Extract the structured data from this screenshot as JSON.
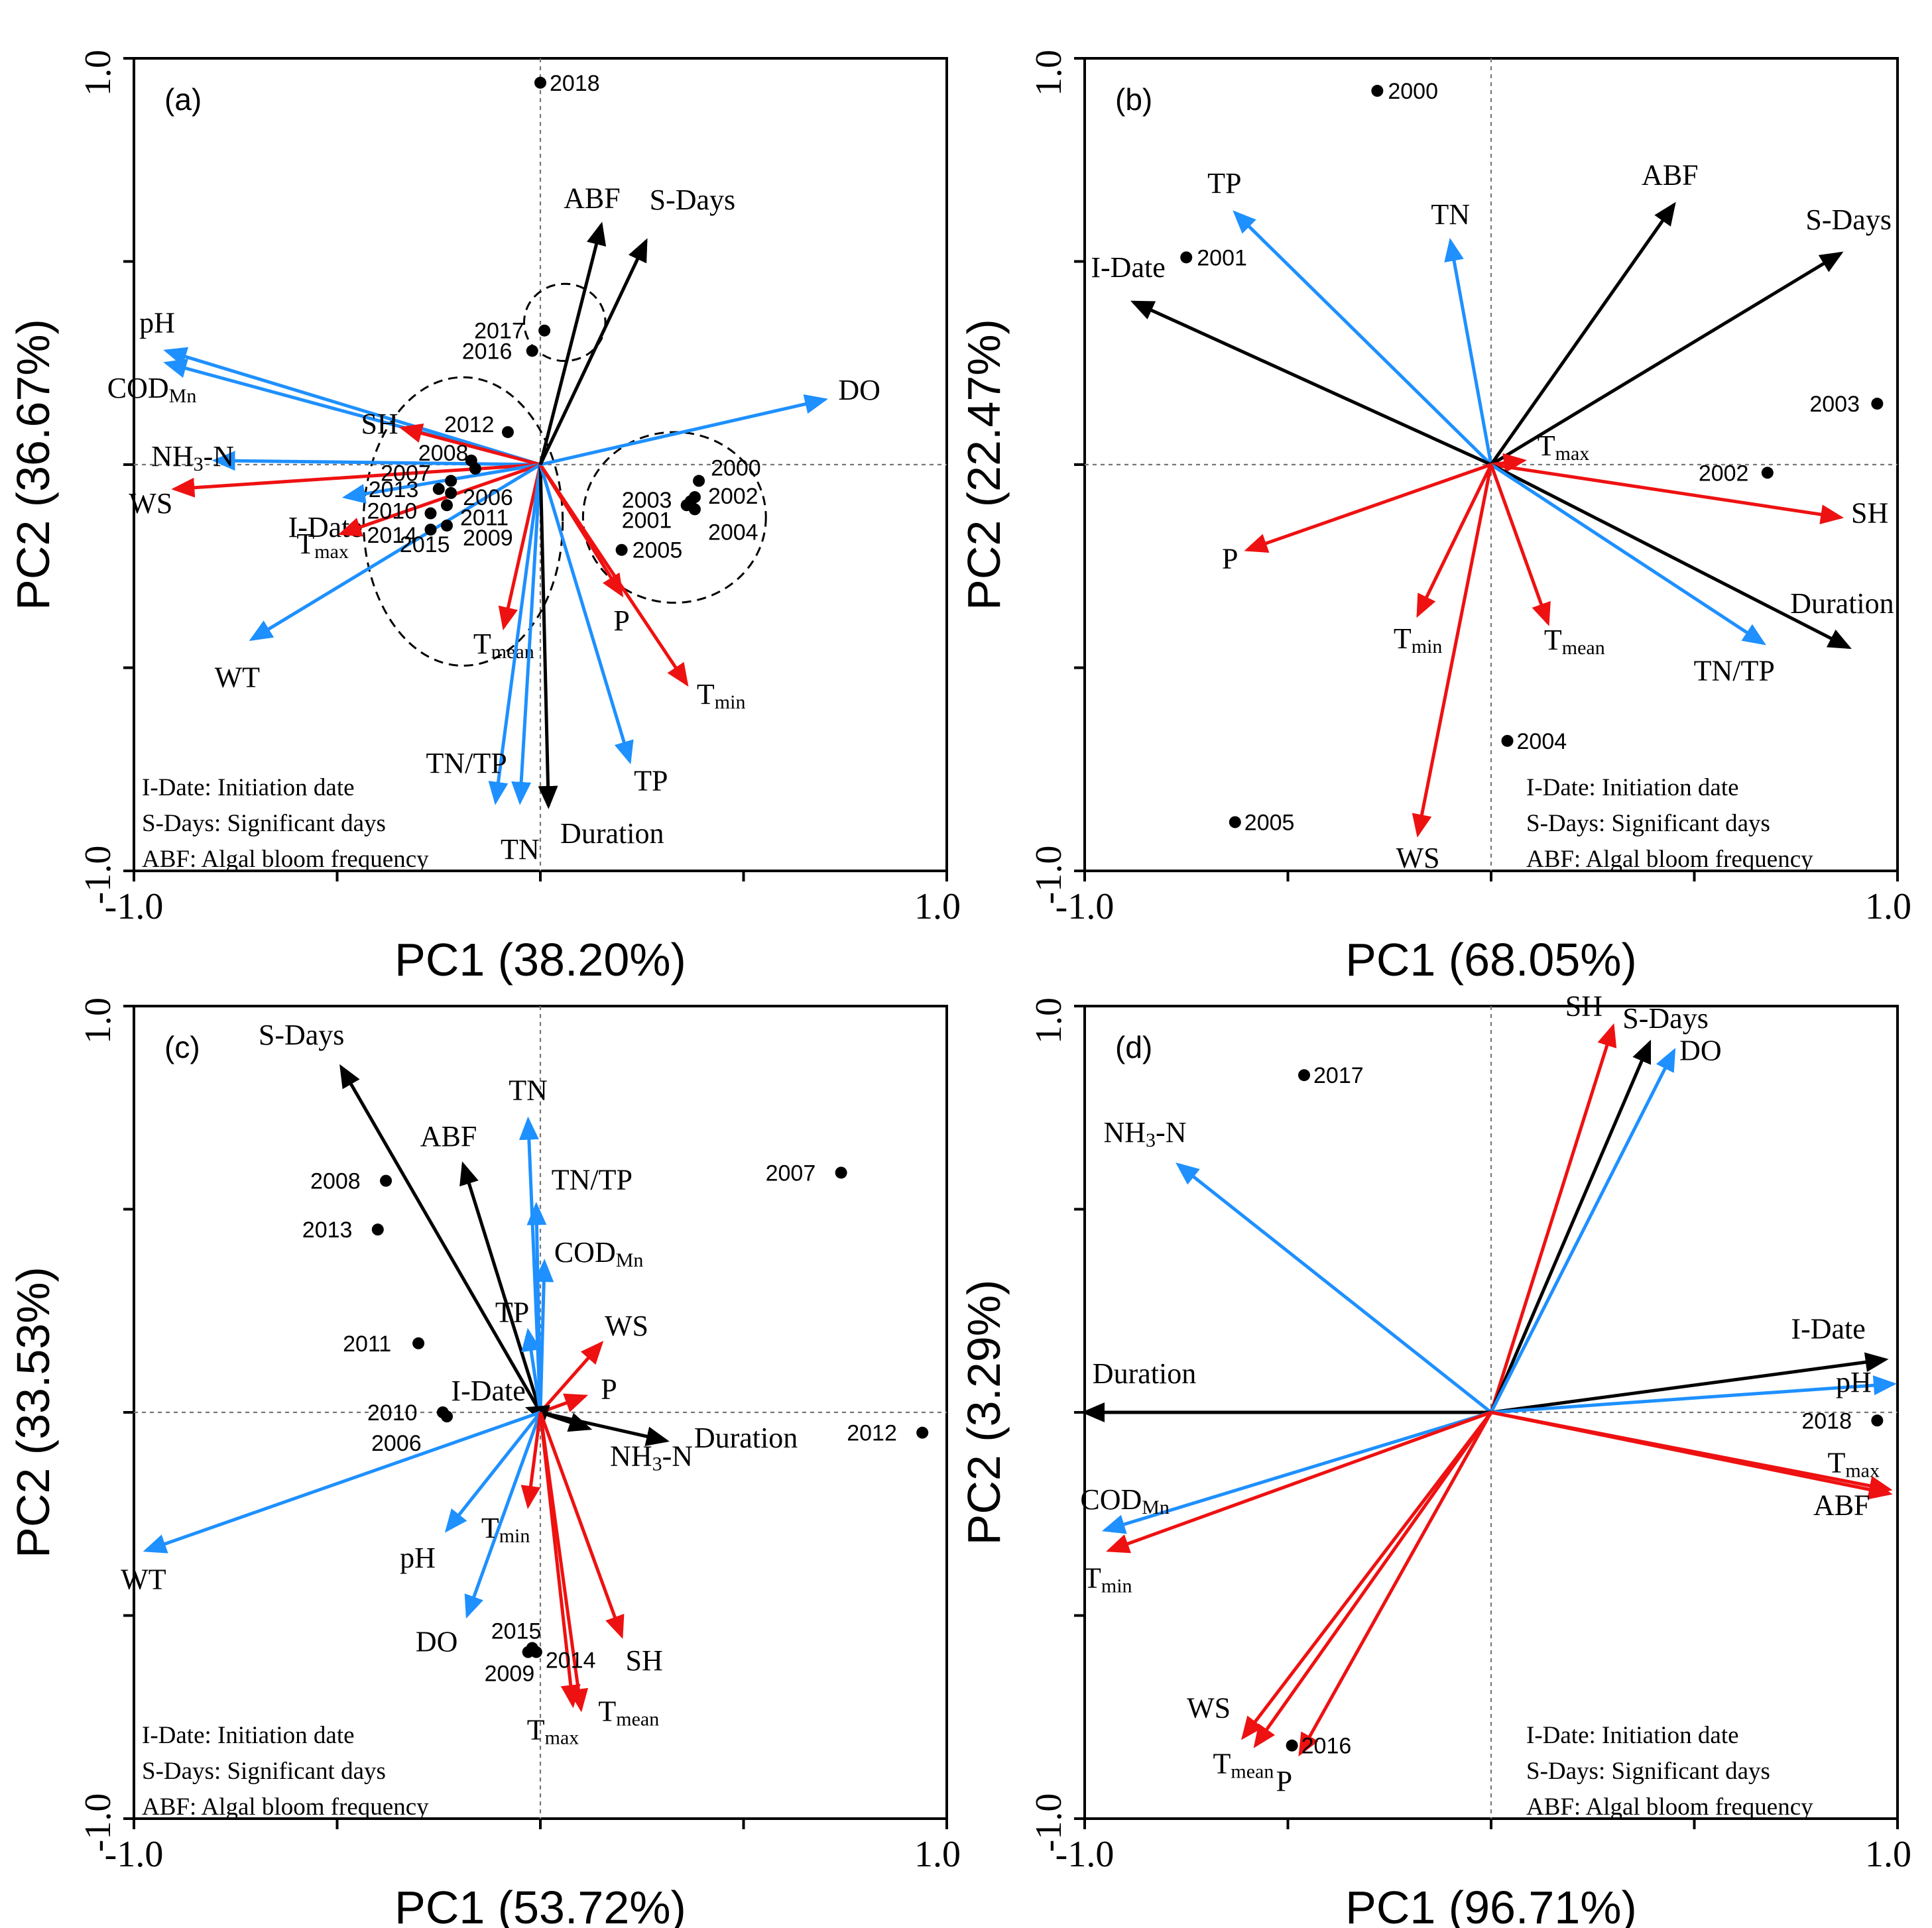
{
  "colors": {
    "environmental_vector": "#1E90FF",
    "meteorological_vector": "#EE1111",
    "bloom_vector": "#000000",
    "point": "#000000"
  },
  "chart_data": [
    {
      "panel": "(a)",
      "type": "scatter",
      "title": "",
      "xlabel": "PC1 (38.20%)",
      "ylabel": "PC2 (36.67%)",
      "xlim": [
        -1.0,
        1.0
      ],
      "ylim": [
        -1.0,
        1.0
      ],
      "tick_labels": {
        "x_min": "-1.0",
        "x_max": "1.0",
        "y_min": "-1.0",
        "y_max": "1.0"
      },
      "vectors": [
        {
          "label": "pH",
          "x": -0.92,
          "y": 0.28,
          "color": "blue"
        },
        {
          "label": "COD",
          "sub": "Mn",
          "x": -0.92,
          "y": 0.25,
          "color": "blue"
        },
        {
          "label": "NH",
          "sub": "3",
          "suffix": "-N",
          "x": -0.8,
          "y": 0.01,
          "color": "blue"
        },
        {
          "label": "SH",
          "x": -0.34,
          "y": 0.09,
          "color": "red"
        },
        {
          "label": "WS",
          "x": -0.9,
          "y": -0.06,
          "color": "red"
        },
        {
          "label": "I-Date",
          "x": -0.48,
          "y": -0.08,
          "color": "blue"
        },
        {
          "label": "T",
          "sub": "max",
          "x": -0.49,
          "y": -0.17,
          "color": "red"
        },
        {
          "label": "WT",
          "x": -0.71,
          "y": -0.43,
          "color": "blue"
        },
        {
          "label": "T",
          "sub": "mean",
          "x": -0.09,
          "y": -0.4,
          "color": "red"
        },
        {
          "label": "TN/TP",
          "x": -0.11,
          "y": -0.83,
          "color": "blue"
        },
        {
          "label": "TN",
          "x": -0.05,
          "y": -0.83,
          "color": "blue"
        },
        {
          "label": "Duration",
          "x": 0.02,
          "y": -0.84,
          "color": "black"
        },
        {
          "label": "TP",
          "x": 0.22,
          "y": -0.73,
          "color": "blue"
        },
        {
          "label": "T",
          "sub": "min",
          "x": 0.36,
          "y": -0.54,
          "color": "red"
        },
        {
          "label": "P",
          "x": 0.2,
          "y": -0.32,
          "color": "red"
        },
        {
          "label": "DO",
          "x": 0.7,
          "y": 0.16,
          "color": "blue"
        },
        {
          "label": "ABF",
          "x": 0.15,
          "y": 0.59,
          "color": "black"
        },
        {
          "label": "S-Days",
          "x": 0.26,
          "y": 0.55,
          "color": "black"
        }
      ],
      "points": [
        {
          "label": "2018",
          "x": 0.0,
          "y": 0.94
        },
        {
          "label": "2017",
          "x": 0.01,
          "y": 0.33
        },
        {
          "label": "2016",
          "x": -0.02,
          "y": 0.28
        },
        {
          "label": "2012",
          "x": -0.08,
          "y": 0.08
        },
        {
          "label": "2008",
          "x": -0.17,
          "y": 0.01
        },
        {
          "label": "2007",
          "x": -0.22,
          "y": -0.04
        },
        {
          "label": "2006",
          "x": -0.22,
          "y": -0.07
        },
        {
          "label": "2011",
          "x": -0.23,
          "y": -0.1
        },
        {
          "label": "2013",
          "x": -0.25,
          "y": -0.06
        },
        {
          "label": "2010",
          "x": -0.27,
          "y": -0.12
        },
        {
          "label": "2014",
          "x": -0.27,
          "y": -0.16
        },
        {
          "label": "2009",
          "x": -0.23,
          "y": -0.15
        },
        {
          "label": "2015",
          "x": -0.16,
          "y": -0.01
        },
        {
          "label": "2000",
          "x": 0.39,
          "y": -0.04
        },
        {
          "label": "2002",
          "x": 0.38,
          "y": -0.08
        },
        {
          "label": "2004",
          "x": 0.38,
          "y": -0.11
        },
        {
          "label": "2003",
          "x": 0.37,
          "y": -0.09
        },
        {
          "label": "2001",
          "x": 0.36,
          "y": -0.1
        },
        {
          "label": "2005",
          "x": 0.2,
          "y": -0.21
        }
      ],
      "legend": [
        "I-Date: Initiation date",
        "S-Days: Significant days",
        "ABF: Algal bloom frequency"
      ]
    },
    {
      "panel": "(b)",
      "type": "scatter",
      "title": "",
      "xlabel": "PC1 (68.05%)",
      "ylabel": "PC2 (22.47%)",
      "xlim": [
        -1.0,
        1.0
      ],
      "ylim": [
        -1.0,
        1.0
      ],
      "tick_labels": {
        "x_min": "-1.0",
        "x_max": "1.0",
        "y_min": "-1.0",
        "y_max": "1.0"
      },
      "vectors": [
        {
          "label": "TP",
          "x": -0.63,
          "y": 0.62,
          "color": "blue"
        },
        {
          "label": "TN",
          "x": -0.1,
          "y": 0.55,
          "color": "blue"
        },
        {
          "label": "ABF",
          "x": 0.45,
          "y": 0.64,
          "color": "black"
        },
        {
          "label": "S-Days",
          "x": 0.86,
          "y": 0.52,
          "color": "black"
        },
        {
          "label": "I-Date",
          "x": -0.88,
          "y": 0.4,
          "color": "black"
        },
        {
          "label": "T",
          "sub": "max",
          "x": 0.08,
          "y": 0.01,
          "color": "red"
        },
        {
          "label": "SH",
          "x": 0.86,
          "y": -0.13,
          "color": "red"
        },
        {
          "label": "Duration",
          "x": 0.88,
          "y": -0.45,
          "color": "black"
        },
        {
          "label": "TN/TP",
          "x": 0.67,
          "y": -0.44,
          "color": "blue"
        },
        {
          "label": "T",
          "sub": "mean",
          "x": 0.14,
          "y": -0.39,
          "color": "red"
        },
        {
          "label": "T",
          "sub": "min",
          "x": -0.18,
          "y": -0.37,
          "color": "red"
        },
        {
          "label": "WS",
          "x": -0.18,
          "y": -0.91,
          "color": "red"
        },
        {
          "label": "P",
          "x": -0.6,
          "y": -0.21,
          "color": "red"
        }
      ],
      "points": [
        {
          "label": "2000",
          "x": -0.28,
          "y": 0.92
        },
        {
          "label": "2001",
          "x": -0.75,
          "y": 0.51
        },
        {
          "label": "2003",
          "x": 0.95,
          "y": 0.15
        },
        {
          "label": "2002",
          "x": 0.68,
          "y": -0.02
        },
        {
          "label": "2004",
          "x": 0.04,
          "y": -0.68
        },
        {
          "label": "2005",
          "x": -0.63,
          "y": -0.88
        }
      ],
      "legend": [
        "I-Date: Initiation date",
        "S-Days: Significant days",
        "ABF: Algal bloom frequency"
      ]
    },
    {
      "panel": "(c)",
      "type": "scatter",
      "title": "",
      "xlabel": "PC1 (53.72%)",
      "ylabel": "PC2 (33.53%)",
      "xlim": [
        -1.0,
        1.0
      ],
      "ylim": [
        -1.0,
        1.0
      ],
      "tick_labels": {
        "x_min": "-1.0",
        "x_max": "1.0",
        "y_min": "-1.0",
        "y_max": "1.0"
      },
      "vectors": [
        {
          "label": "S-Days",
          "x": -0.49,
          "y": 0.85,
          "color": "black"
        },
        {
          "label": "ABF",
          "x": -0.19,
          "y": 0.61,
          "color": "black"
        },
        {
          "label": "TN",
          "x": -0.03,
          "y": 0.72,
          "color": "blue"
        },
        {
          "label": "TN/TP",
          "x": -0.01,
          "y": 0.51,
          "color": "blue"
        },
        {
          "label": "COD",
          "sub": "Mn",
          "x": 0.01,
          "y": 0.37,
          "color": "blue"
        },
        {
          "label": "TP",
          "x": -0.03,
          "y": 0.2,
          "color": "blue"
        },
        {
          "label": "WS",
          "x": 0.15,
          "y": 0.17,
          "color": "red"
        },
        {
          "label": "P",
          "x": 0.11,
          "y": 0.04,
          "color": "red"
        },
        {
          "label": "Duration",
          "x": 0.31,
          "y": -0.07,
          "color": "black"
        },
        {
          "label": "NH",
          "sub": "3",
          "suffix": "-N",
          "x": 0.12,
          "y": -0.04,
          "color": "black"
        },
        {
          "label": "I-Date",
          "x": -0.03,
          "y": 0.01,
          "color": "black"
        },
        {
          "label": "WT",
          "x": -0.97,
          "y": -0.34,
          "color": "blue"
        },
        {
          "label": "pH",
          "x": -0.23,
          "y": -0.29,
          "color": "blue"
        },
        {
          "label": "DO",
          "x": -0.18,
          "y": -0.5,
          "color": "blue"
        },
        {
          "label": "T",
          "sub": "min",
          "x": -0.03,
          "y": -0.23,
          "color": "red"
        },
        {
          "label": "SH",
          "x": 0.2,
          "y": -0.55,
          "color": "red"
        },
        {
          "label": "T",
          "sub": "mean",
          "x": 0.1,
          "y": -0.73,
          "color": "red"
        },
        {
          "label": "T",
          "sub": "max",
          "x": 0.08,
          "y": -0.72,
          "color": "red"
        }
      ],
      "points": [
        {
          "label": "2007",
          "x": 0.74,
          "y": 0.59
        },
        {
          "label": "2008",
          "x": -0.38,
          "y": 0.57
        },
        {
          "label": "2013",
          "x": -0.4,
          "y": 0.45
        },
        {
          "label": "2011",
          "x": -0.3,
          "y": 0.17
        },
        {
          "label": "2010",
          "x": -0.24,
          "y": 0.0
        },
        {
          "label": "2006",
          "x": -0.23,
          "y": -0.01
        },
        {
          "label": "2012",
          "x": 0.94,
          "y": -0.05
        },
        {
          "label": "2015",
          "x": -0.02,
          "y": -0.58
        },
        {
          "label": "2009",
          "x": -0.03,
          "y": -0.59
        },
        {
          "label": "2014",
          "x": -0.01,
          "y": -0.59
        }
      ],
      "legend": [
        "I-Date: Initiation date",
        "S-Days: Significant days",
        "ABF: Algal bloom frequency"
      ]
    },
    {
      "panel": "(d)",
      "type": "scatter",
      "title": "",
      "xlabel": "PC1 (96.71%)",
      "ylabel": "PC2 (3.29%)",
      "xlim": [
        -1.0,
        1.0
      ],
      "ylim": [
        -1.0,
        1.0
      ],
      "tick_labels": {
        "x_min": "-1.0",
        "x_max": "1.0",
        "y_min": "-1.0",
        "y_max": "1.0"
      },
      "vectors": [
        {
          "label": "SH",
          "x": 0.3,
          "y": 0.95,
          "color": "red"
        },
        {
          "label": "S-Days",
          "x": 0.39,
          "y": 0.91,
          "color": "black"
        },
        {
          "label": "DO",
          "x": 0.45,
          "y": 0.89,
          "color": "blue"
        },
        {
          "label": "NH",
          "sub": "3",
          "suffix": "-N",
          "x": -0.77,
          "y": 0.61,
          "color": "blue"
        },
        {
          "label": "I-Date",
          "x": 0.97,
          "y": 0.13,
          "color": "black"
        },
        {
          "label": "pH",
          "x": 0.99,
          "y": 0.07,
          "color": "blue"
        },
        {
          "label": "T",
          "sub": "max",
          "x": 0.98,
          "y": -0.19,
          "color": "red"
        },
        {
          "label": "ABF",
          "x": 0.98,
          "y": -0.2,
          "color": "red"
        },
        {
          "label": "Duration",
          "x": -1.0,
          "y": 0.0,
          "color": "black"
        },
        {
          "label": "COD",
          "sub": "Mn",
          "x": -0.95,
          "y": -0.29,
          "color": "blue"
        },
        {
          "label": "T",
          "sub": "min",
          "x": -0.94,
          "y": -0.34,
          "color": "red"
        },
        {
          "label": "WS",
          "x": -0.61,
          "y": -0.8,
          "color": "red"
        },
        {
          "label": "T",
          "sub": "mean",
          "x": -0.58,
          "y": -0.82,
          "color": "red"
        },
        {
          "label": "P",
          "x": -0.47,
          "y": -0.84,
          "color": "red"
        }
      ],
      "points": [
        {
          "label": "2017",
          "x": -0.46,
          "y": 0.83
        },
        {
          "label": "2018",
          "x": 0.95,
          "y": -0.02
        },
        {
          "label": "2016",
          "x": -0.49,
          "y": -0.82
        }
      ],
      "legend": [
        "I-Date: Initiation date",
        "S-Days: Significant days",
        "ABF: Algal bloom frequency"
      ]
    }
  ]
}
